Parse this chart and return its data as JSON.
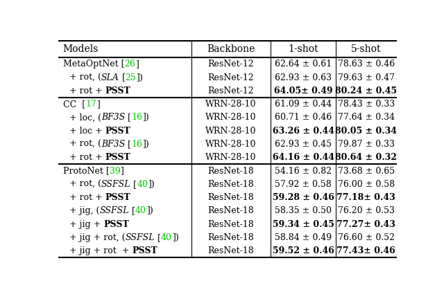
{
  "col_headers": [
    "Models",
    "Backbone",
    "1-shot",
    "5-shot"
  ],
  "rows": [
    {
      "model_plain": "MetaOptNet [",
      "model_cite": "26",
      "model_tail": "]",
      "model_italic": "",
      "model_prefix": "",
      "model_suffix": "",
      "backbone": "ResNet-12",
      "shot1": "62.64 ± 0.61",
      "shot1_bold": false,
      "shot5": "78.63 ± 0.46",
      "shot5_bold": false,
      "group_start": true,
      "indent": false
    },
    {
      "model_plain": "+ rot, (",
      "model_italic": "SLA",
      "model_cite_pre": " [",
      "model_cite": "25",
      "model_tail": "])",
      "backbone": "ResNet-12",
      "shot1": "62.93 ± 0.63",
      "shot1_bold": false,
      "shot5": "79.63 ± 0.47",
      "shot5_bold": false,
      "group_start": false,
      "indent": true
    },
    {
      "model_plain": "+ rot + ",
      "model_bold": "PSST",
      "backbone": "ResNet-12",
      "shot1": "64.05± 0.49",
      "shot1_bold": true,
      "shot5": "80.24 ± 0.45",
      "shot5_bold": true,
      "group_start": false,
      "indent": true
    },
    {
      "model_plain": "CC  [",
      "model_cite": "17",
      "model_tail": "]",
      "backbone": "WRN-28-10",
      "shot1": "61.09 ± 0.44",
      "shot1_bold": false,
      "shot5": "78.43 ± 0.33",
      "shot5_bold": false,
      "group_start": true,
      "indent": false
    },
    {
      "model_plain": "+ loc, (",
      "model_italic": "BF3S",
      "model_cite_pre": " [",
      "model_cite": "16",
      "model_tail": "])",
      "backbone": "WRN-28-10",
      "shot1": "60.71 ± 0.46",
      "shot1_bold": false,
      "shot5": "77.64 ± 0.34",
      "shot5_bold": false,
      "group_start": false,
      "indent": true
    },
    {
      "model_plain": "+ loc + ",
      "model_bold": "PSST",
      "backbone": "WRN-28-10",
      "shot1": "63.26 ± 0.44",
      "shot1_bold": true,
      "shot5": "80.05 ± 0.34",
      "shot5_bold": true,
      "group_start": false,
      "indent": true
    },
    {
      "model_plain": "+ rot, (",
      "model_italic": "BF3S",
      "model_cite_pre": " [",
      "model_cite": "16",
      "model_tail": "])",
      "backbone": "WRN-28-10",
      "shot1": "62.93 ± 0.45",
      "shot1_bold": false,
      "shot5": "79.87 ± 0.33",
      "shot5_bold": false,
      "group_start": false,
      "indent": true
    },
    {
      "model_plain": "+ rot + ",
      "model_bold": "PSST",
      "backbone": "WRN-28-10",
      "shot1": "64.16 ± 0.44",
      "shot1_bold": true,
      "shot5": "80.64 ± 0.32",
      "shot5_bold": true,
      "group_start": false,
      "indent": true
    },
    {
      "model_plain": "ProtoNet [",
      "model_cite": "39",
      "model_tail": "]",
      "backbone": "ResNet-18",
      "shot1": "54.16 ± 0.82",
      "shot1_bold": false,
      "shot5": "73.68 ± 0.65",
      "shot5_bold": false,
      "group_start": true,
      "indent": false
    },
    {
      "model_plain": "+ rot, (",
      "model_italic": "SSFSL",
      "model_cite_pre": " [",
      "model_cite": "40",
      "model_tail": "])",
      "backbone": "ResNet-18",
      "shot1": "57.92 ± 0.58",
      "shot1_bold": false,
      "shot5": "76.00 ± 0.58",
      "shot5_bold": false,
      "group_start": false,
      "indent": true
    },
    {
      "model_plain": "+ rot + ",
      "model_bold": "PSST",
      "backbone": "ResNet-18",
      "shot1": "59.28 ± 0.46",
      "shot1_bold": true,
      "shot5": "77.18± 0.43",
      "shot5_bold": true,
      "group_start": false,
      "indent": true
    },
    {
      "model_plain": "+ jig, (",
      "model_italic": "SSFSL",
      "model_cite_pre": " [",
      "model_cite": "40",
      "model_tail": "])",
      "backbone": "ResNet-18",
      "shot1": "58.35 ± 0.50",
      "shot1_bold": false,
      "shot5": "76.20 ± 0.53",
      "shot5_bold": false,
      "group_start": false,
      "indent": true
    },
    {
      "model_plain": "+ jig + ",
      "model_bold": "PSST",
      "backbone": "ResNet-18",
      "shot1": "59.34 ± 0.45",
      "shot1_bold": true,
      "shot5": "77.27± 0.43",
      "shot5_bold": true,
      "group_start": false,
      "indent": true
    },
    {
      "model_plain": "+ jig + rot, (",
      "model_italic": "SSFSL",
      "model_cite_pre": " [",
      "model_cite": "40",
      "model_tail": "])",
      "backbone": "ResNet-18",
      "shot1": "58.84 ± 0.49",
      "shot1_bold": false,
      "shot5": "76.60 ± 0.52",
      "shot5_bold": false,
      "group_start": false,
      "indent": true
    },
    {
      "model_plain": "+ jig + rot  + ",
      "model_bold": "PSST",
      "backbone": "ResNet-18",
      "shot1": "59.52 ± 0.46",
      "shot1_bold": true,
      "shot5": "77.43± 0.46",
      "shot5_bold": true,
      "group_start": false,
      "indent": true
    }
  ]
}
